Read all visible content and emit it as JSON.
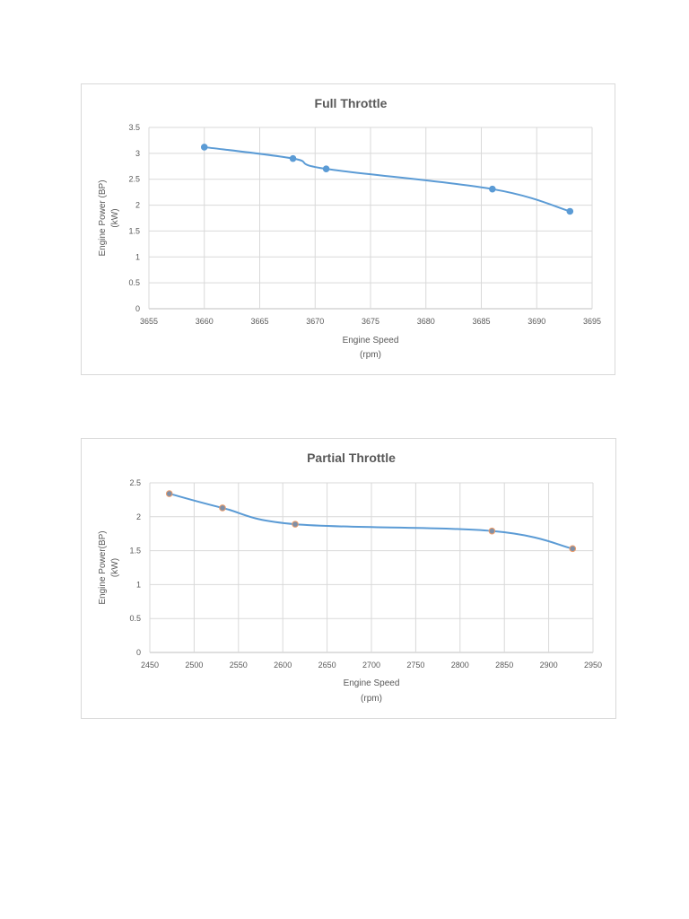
{
  "chart_data": [
    {
      "type": "line",
      "title": "Full Throttle",
      "xlabel": [
        "Engine Speed",
        "(rpm)"
      ],
      "ylabel": [
        "Engine Power (BP)",
        "(kW)"
      ],
      "x": [
        3660,
        3668,
        3671,
        3686,
        3693
      ],
      "series": [
        {
          "name": "Engine Power",
          "values": [
            3.12,
            2.9,
            2.7,
            2.31,
            1.88
          ]
        }
      ],
      "xlim": [
        3655,
        3695
      ],
      "ylim": [
        0,
        3.5
      ],
      "xticks": [
        3655,
        3660,
        3665,
        3670,
        3675,
        3680,
        3685,
        3690,
        3695
      ],
      "yticks": [
        0,
        0.5,
        1,
        1.5,
        2,
        2.5,
        3,
        3.5
      ],
      "grid": true,
      "smooth": true,
      "line_color": "#5b9bd5",
      "marker_fill": "#5b9bd5",
      "marker_stroke": "#5b9bd5"
    },
    {
      "type": "line",
      "title": "Partial Throttle",
      "xlabel": [
        "Engine Speed",
        "(rpm)"
      ],
      "ylabel": [
        "Engine Power(BP)",
        "(kW)"
      ],
      "x": [
        2472,
        2532,
        2614,
        2836,
        2927
      ],
      "series": [
        {
          "name": "Engine Power",
          "values": [
            2.34,
            2.13,
            1.89,
            1.79,
            1.53
          ]
        }
      ],
      "xlim": [
        2450,
        2950
      ],
      "ylim": [
        0,
        2.5
      ],
      "xticks": [
        2450,
        2500,
        2550,
        2600,
        2650,
        2700,
        2750,
        2800,
        2850,
        2900,
        2950
      ],
      "yticks": [
        0,
        0.5,
        1,
        1.5,
        2,
        2.5
      ],
      "grid": true,
      "smooth": true,
      "line_color": "#5b9bd5",
      "marker_fill": "#7f8fa6",
      "marker_stroke": "#ed9d6b"
    }
  ]
}
